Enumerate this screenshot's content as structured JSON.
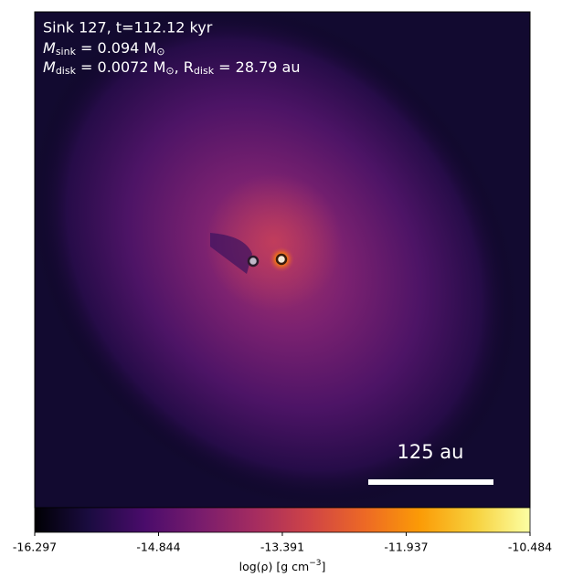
{
  "chart_data": {
    "type": "density_map",
    "title": "Sink 127, t=112.12 kyr",
    "sink_mass_line": [
      "M",
      "sink",
      " = 0.094 M",
      "⊙"
    ],
    "disk_line": [
      "M",
      "disk",
      " = 0.0072 M",
      "⊙",
      ", R",
      "disk",
      " = 28.79 au"
    ],
    "scale_bar_label": "125 au",
    "colormap": "inferno",
    "colorbar_label": [
      "log(ρ) [g cm",
      "−3",
      "]"
    ],
    "clim": [
      -16.297,
      -10.484
    ],
    "cticks": [
      -16.297,
      -14.844,
      -13.391,
      -11.937,
      -10.484
    ]
  }
}
